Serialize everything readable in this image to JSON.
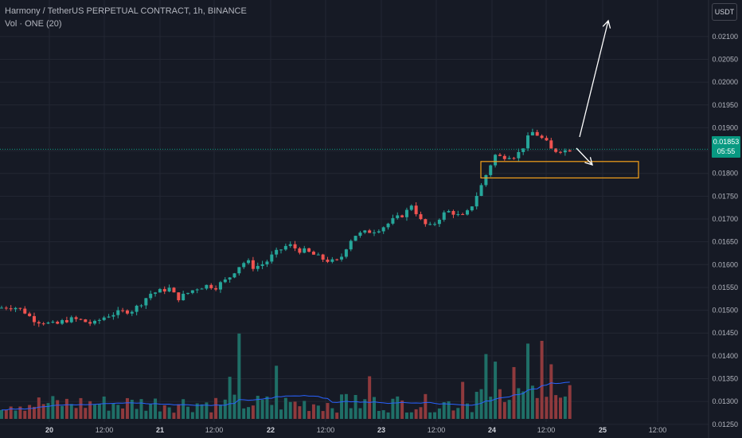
{
  "legend": {
    "symbol_line": "Harmony / TetherUS PERPETUAL CONTRACT, 1h, BINANCE",
    "volume_line": "Vol · ONE (20)"
  },
  "unit_button": "USDT",
  "last_price": {
    "value": "0.01853",
    "countdown": "05:55"
  },
  "colors": {
    "background": "#161a25",
    "up": "#26a69a",
    "down": "#ef5350",
    "volume_up": "#1f6f67",
    "volume_down": "#8f3a3d",
    "volume_ma": "#2962ff",
    "grid": "#232733",
    "box": "#f7a21b",
    "arrow": "#ffffff",
    "price_tag": "#089981"
  },
  "chart_data": {
    "type": "candlestick",
    "interval": "1h",
    "y_axis": {
      "range": [
        0.0122,
        0.0218
      ],
      "ticks": [
        "0.02100",
        "0.02050",
        "0.02000",
        "0.01950",
        "0.01900",
        "0.01850",
        "0.01800",
        "0.01750",
        "0.01700",
        "0.01650",
        "0.01600",
        "0.01550",
        "0.01500",
        "0.01450",
        "0.01400",
        "0.01350",
        "0.01300",
        "0.01250"
      ]
    },
    "x_axis": {
      "ticks": [
        "20",
        "12:00",
        "21",
        "12:00",
        "22",
        "12:00",
        "23",
        "12:00",
        "24",
        "12:00",
        "25",
        "12:00"
      ]
    },
    "price_path": [
      [
        0,
        0.01505
      ],
      [
        10,
        0.01508
      ],
      [
        20,
        0.01506
      ],
      [
        30,
        0.01498
      ],
      [
        38,
        0.01485
      ],
      [
        46,
        0.01476
      ],
      [
        54,
        0.01475
      ],
      [
        62,
        0.0147
      ],
      [
        70,
        0.01468
      ],
      [
        78,
        0.01475
      ],
      [
        86,
        0.0148
      ],
      [
        94,
        0.0148
      ],
      [
        102,
        0.01478
      ],
      [
        110,
        0.01473
      ],
      [
        118,
        0.0147
      ],
      [
        126,
        0.0148
      ],
      [
        134,
        0.01488
      ],
      [
        142,
        0.01492
      ],
      [
        150,
        0.01495
      ],
      [
        158,
        0.01498
      ],
      [
        166,
        0.015
      ],
      [
        174,
        0.0151
      ],
      [
        182,
        0.01525
      ],
      [
        190,
        0.01538
      ],
      [
        198,
        0.0154
      ],
      [
        206,
        0.01545
      ],
      [
        214,
        0.01548
      ],
      [
        222,
        0.01525
      ],
      [
        230,
        0.01532
      ],
      [
        238,
        0.0154
      ],
      [
        246,
        0.01548
      ],
      [
        254,
        0.01552
      ],
      [
        262,
        0.01555
      ],
      [
        270,
        0.0155
      ],
      [
        278,
        0.0156
      ],
      [
        286,
        0.01568
      ],
      [
        294,
        0.01585
      ],
      [
        302,
        0.016
      ],
      [
        310,
        0.01608
      ],
      [
        318,
        0.01595
      ],
      [
        326,
        0.01598
      ],
      [
        334,
        0.01605
      ],
      [
        342,
        0.0162
      ],
      [
        350,
        0.0163
      ],
      [
        358,
        0.0164
      ],
      [
        366,
        0.01642
      ],
      [
        374,
        0.01632
      ],
      [
        382,
        0.0163
      ],
      [
        390,
        0.01625
      ],
      [
        398,
        0.01618
      ],
      [
        406,
        0.01612
      ],
      [
        414,
        0.01608
      ],
      [
        422,
        0.01605
      ],
      [
        430,
        0.0162
      ],
      [
        438,
        0.0165
      ],
      [
        446,
        0.01665
      ],
      [
        454,
        0.01668
      ],
      [
        462,
        0.01672
      ],
      [
        470,
        0.01675
      ],
      [
        478,
        0.0168
      ],
      [
        486,
        0.01688
      ],
      [
        494,
        0.01698
      ],
      [
        502,
        0.01705
      ],
      [
        510,
        0.01715
      ],
      [
        518,
        0.01735
      ],
      [
        526,
        0.017
      ],
      [
        534,
        0.01688
      ],
      [
        542,
        0.01682
      ],
      [
        550,
        0.017
      ],
      [
        558,
        0.01712
      ],
      [
        566,
        0.01718
      ],
      [
        574,
        0.01708
      ],
      [
        582,
        0.01705
      ],
      [
        590,
        0.0172
      ],
      [
        598,
        0.0175
      ],
      [
        606,
        0.01778
      ],
      [
        614,
        0.01812
      ],
      [
        622,
        0.0184
      ],
      [
        630,
        0.01835
      ],
      [
        638,
        0.0184
      ],
      [
        646,
        0.01838
      ],
      [
        654,
        0.01848
      ],
      [
        662,
        0.01875
      ],
      [
        670,
        0.01892
      ],
      [
        678,
        0.0188
      ],
      [
        686,
        0.01868
      ],
      [
        694,
        0.01848
      ],
      [
        702,
        0.01852
      ],
      [
        710,
        0.0185
      ],
      [
        716,
        0.01853
      ]
    ],
    "volume_axis_max": 100,
    "annotations": [
      {
        "type": "rectangle",
        "price_top": 0.01826,
        "price_bottom": 0.0179
      },
      {
        "type": "arrow",
        "direction": "up"
      },
      {
        "type": "arrow",
        "direction": "down"
      }
    ]
  }
}
